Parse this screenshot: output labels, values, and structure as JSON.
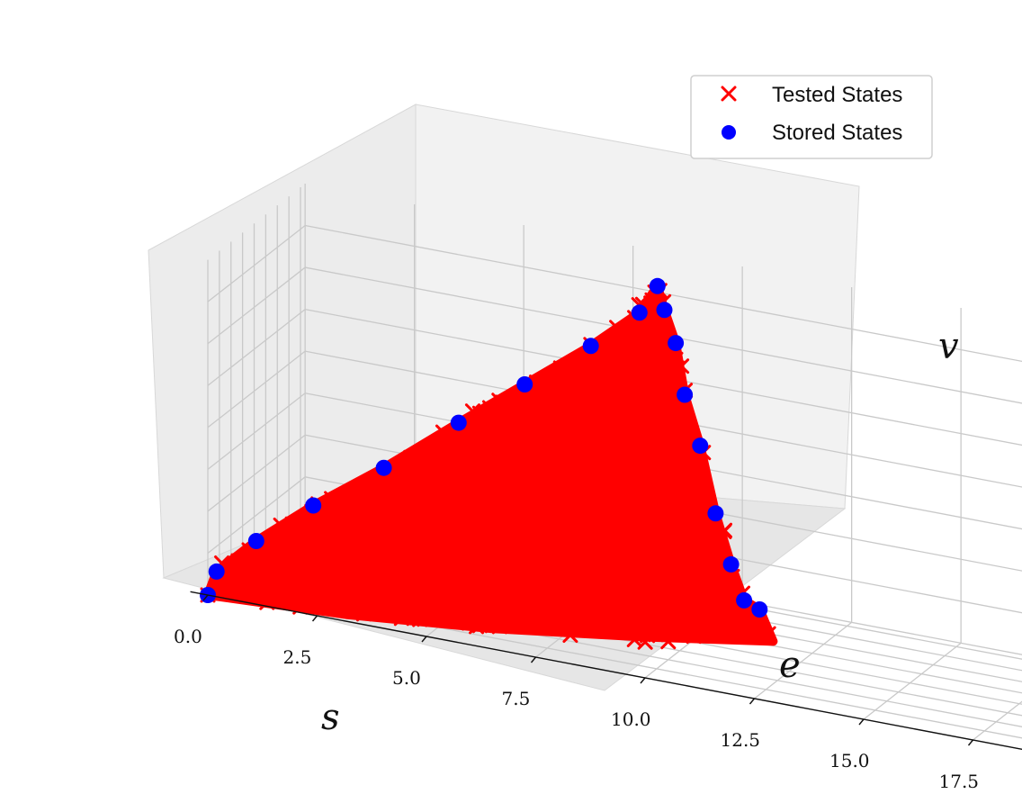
{
  "chart_data": {
    "type": "scatter",
    "projection": "3d",
    "title": "",
    "xlabel": "s",
    "ylabel": "e",
    "zlabel": "v",
    "xlim": [
      0.0,
      17.5
    ],
    "ylim": [
      0.0,
      2.0
    ],
    "zlim": [
      0.0,
      3.5
    ],
    "grid": true,
    "legend_position": "top-right",
    "x_ticks": [
      "0.0",
      "2.5",
      "5.0",
      "7.5",
      "10.0",
      "12.5",
      "15.0",
      "17.5"
    ],
    "y_ticks": [
      "0.00",
      "0.25",
      "0.50",
      "0.75",
      "1.00",
      "1.25",
      "1.50",
      "1.75",
      "2.00"
    ],
    "z_ticks": [
      "0.0",
      "0.5",
      "1.0",
      "1.5",
      "2.0",
      "2.5",
      "3.0",
      "3.5"
    ],
    "colors": {
      "tested": "#ff0000",
      "stored": "#0000ff"
    },
    "series": [
      {
        "name": "Tested States",
        "marker": "x",
        "color": "#ff0000",
        "points": [
          [
            0.0,
            0.0,
            0.0
          ],
          [
            17.5,
            1.9,
            0.0
          ],
          [
            8.8,
            1.0,
            3.9
          ]
        ]
      },
      {
        "name": "Stored States",
        "marker": "circle",
        "color": "#0000ff",
        "points": [
          [
            0.0,
            0.0,
            0.0
          ],
          [
            0.2,
            0.0,
            0.3
          ],
          [
            1.0,
            0.1,
            0.7
          ],
          [
            2.2,
            0.2,
            1.2
          ],
          [
            3.6,
            0.4,
            1.7
          ],
          [
            5.1,
            0.6,
            2.3
          ],
          [
            6.4,
            0.8,
            2.8
          ],
          [
            7.7,
            1.0,
            3.3
          ],
          [
            8.6,
            1.2,
            3.7
          ],
          [
            8.8,
            1.4,
            3.95
          ],
          [
            8.8,
            1.55,
            3.6
          ],
          [
            8.9,
            1.7,
            3.15
          ],
          [
            9.0,
            1.8,
            2.5
          ],
          [
            9.3,
            1.85,
            1.9
          ],
          [
            9.6,
            1.9,
            1.1
          ],
          [
            9.9,
            1.95,
            0.5
          ],
          [
            10.2,
            1.95,
            0.1
          ],
          [
            10.5,
            2.0,
            0.0
          ]
        ]
      }
    ]
  }
}
